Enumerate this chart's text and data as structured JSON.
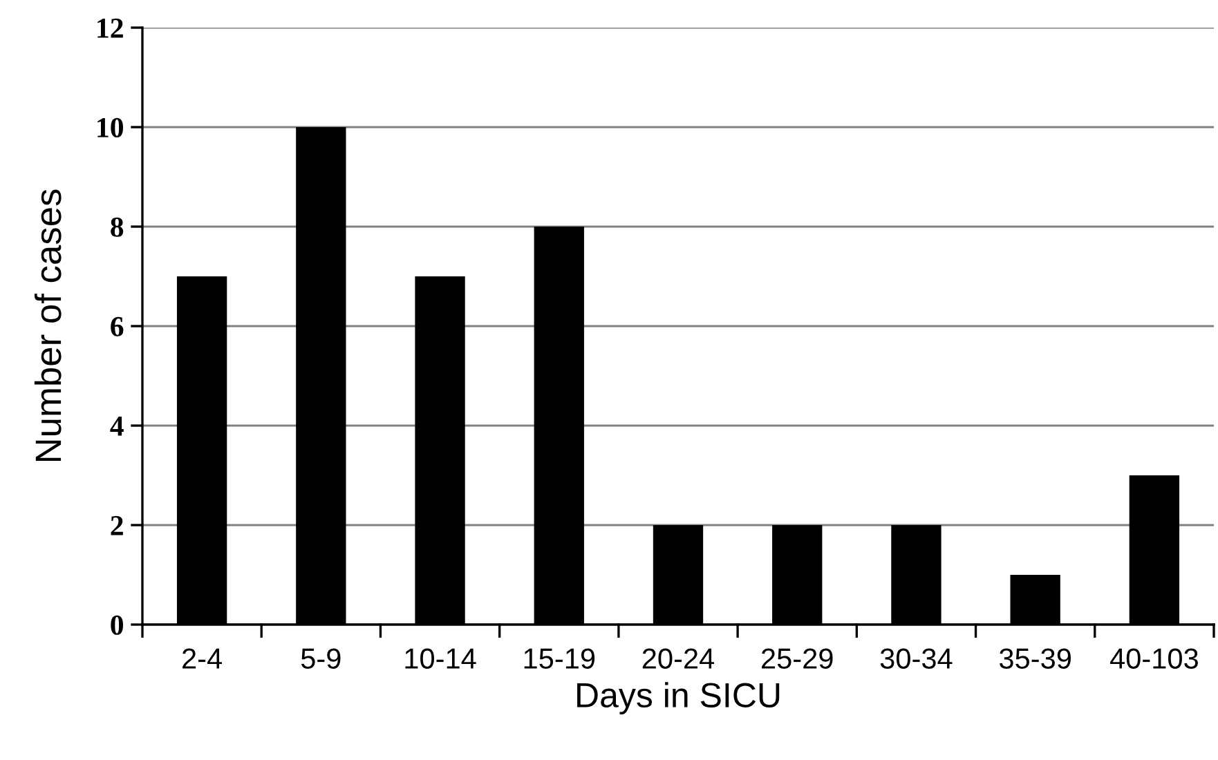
{
  "chart_data": {
    "type": "bar",
    "xlabel": "Days in SICU",
    "ylabel": "Number of cases",
    "categories": [
      "2-4",
      "5-9",
      "10-14",
      "15-19",
      "20-24",
      "25-29",
      "30-34",
      "35-39",
      "40-103"
    ],
    "values": [
      7,
      10,
      7,
      8,
      2,
      2,
      2,
      1,
      3
    ],
    "color": "#000000",
    "ylim": [
      0,
      12
    ],
    "yticks": [
      0,
      2,
      4,
      6,
      8,
      10,
      12
    ],
    "grid": "y",
    "legend": false
  }
}
